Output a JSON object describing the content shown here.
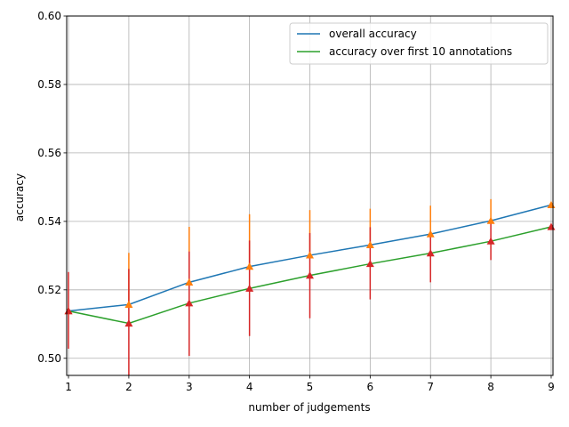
{
  "chart_data": {
    "type": "line",
    "title": "",
    "xlabel": "number of judgements",
    "ylabel": "accuracy",
    "xlim": [
      0.97,
      9.03
    ],
    "ylim": [
      0.495,
      0.6
    ],
    "xticks": [
      1,
      2,
      3,
      4,
      5,
      6,
      7,
      8,
      9
    ],
    "yticks": [
      0.5,
      0.52,
      0.54,
      0.56,
      0.58,
      0.6
    ],
    "ytick_labels": [
      "0.50",
      "0.52",
      "0.54",
      "0.56",
      "0.58",
      "0.60"
    ],
    "grid": true,
    "legend_position": "top-right",
    "x": [
      1,
      2,
      3,
      4,
      5,
      6,
      7,
      8,
      9
    ],
    "series": [
      {
        "name": "overall accuracy",
        "line_color": "#1f77b4",
        "marker_color": "#ff7f0e",
        "values": [
          0.5138,
          0.5157,
          0.5222,
          0.5268,
          0.5301,
          0.5331,
          0.5363,
          0.5402,
          0.5448
        ],
        "err_upper": [
          0.5138,
          0.5308,
          0.5384,
          0.5421,
          0.5433,
          0.5437,
          0.5446,
          0.5465,
          0.5448
        ],
        "err_lower": [
          0.5138,
          0.5157,
          0.5222,
          0.5268,
          0.5301,
          0.5331,
          0.5363,
          0.5402,
          0.5448
        ]
      },
      {
        "name": "accuracy over first 10 annotations",
        "line_color": "#2ca02c",
        "marker_color": "#d62728",
        "values": [
          0.5138,
          0.5102,
          0.5161,
          0.5204,
          0.5242,
          0.5276,
          0.5307,
          0.5342,
          0.5384
        ],
        "err_upper": [
          0.5252,
          0.5261,
          0.5312,
          0.5344,
          0.5366,
          0.5383,
          0.5372,
          0.5405,
          0.5388
        ],
        "err_lower": [
          0.5028,
          0.495,
          0.5007,
          0.5065,
          0.5117,
          0.5172,
          0.5222,
          0.5287,
          0.5384
        ]
      }
    ]
  }
}
